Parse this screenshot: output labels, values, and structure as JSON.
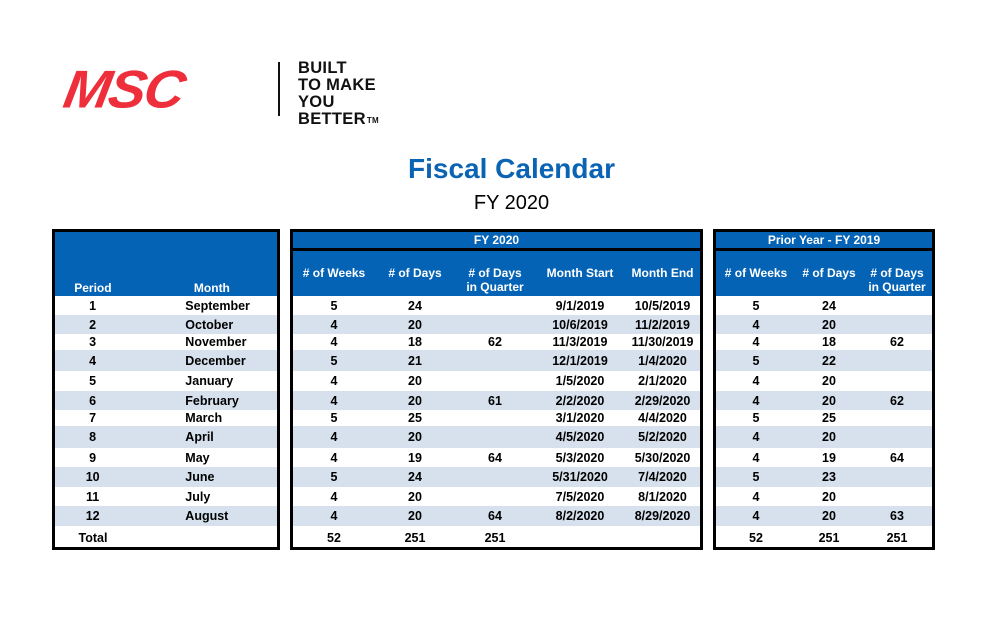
{
  "logo": {
    "brand": "MSC",
    "tagline_lines": [
      "BUILT",
      "TO MAKE",
      "YOU BETTER"
    ],
    "trademark": "TM",
    "brand_color": "#ee2e3a"
  },
  "header": {
    "title": "Fiscal Calendar",
    "subtitle": "FY 2020",
    "title_color": "#0b63b3"
  },
  "colors": {
    "header_fill": "#0563b6",
    "row_shade": "#d6e1ed",
    "border": "#000000"
  },
  "left_table": {
    "columns": [
      "Period",
      "Month"
    ],
    "rows": [
      {
        "period": "1",
        "month": "September"
      },
      {
        "period": "2",
        "month": "October"
      },
      {
        "period": "3",
        "month": "November"
      },
      {
        "period": "4",
        "month": "December"
      },
      {
        "period": "5",
        "month": "January"
      },
      {
        "period": "6",
        "month": "February"
      },
      {
        "period": "7",
        "month": "March"
      },
      {
        "period": "8",
        "month": "April"
      },
      {
        "period": "9",
        "month": "May"
      },
      {
        "period": "10",
        "month": "June"
      },
      {
        "period": "11",
        "month": "July"
      },
      {
        "period": "12",
        "month": "August"
      }
    ],
    "total_label": "Total"
  },
  "fy2020_table": {
    "group_label": "FY 2020",
    "columns": {
      "weeks": "# of Weeks",
      "days": "# of Days",
      "days_in_quarter_line1": "# of Days",
      "days_in_quarter_line2": "in Quarter",
      "month_start": "Month Start",
      "month_end": "Month End"
    },
    "rows": [
      {
        "weeks": "5",
        "days": "24",
        "quarter": "",
        "start": "9/1/2019",
        "end": "10/5/2019"
      },
      {
        "weeks": "4",
        "days": "20",
        "quarter": "",
        "start": "10/6/2019",
        "end": "11/2/2019"
      },
      {
        "weeks": "4",
        "days": "18",
        "quarter": "62",
        "start": "11/3/2019",
        "end": "11/30/2019"
      },
      {
        "weeks": "5",
        "days": "21",
        "quarter": "",
        "start": "12/1/2019",
        "end": "1/4/2020"
      },
      {
        "weeks": "4",
        "days": "20",
        "quarter": "",
        "start": "1/5/2020",
        "end": "2/1/2020"
      },
      {
        "weeks": "4",
        "days": "20",
        "quarter": "61",
        "start": "2/2/2020",
        "end": "2/29/2020"
      },
      {
        "weeks": "5",
        "days": "25",
        "quarter": "",
        "start": "3/1/2020",
        "end": "4/4/2020"
      },
      {
        "weeks": "4",
        "days": "20",
        "quarter": "",
        "start": "4/5/2020",
        "end": "5/2/2020"
      },
      {
        "weeks": "4",
        "days": "19",
        "quarter": "64",
        "start": "5/3/2020",
        "end": "5/30/2020"
      },
      {
        "weeks": "5",
        "days": "24",
        "quarter": "",
        "start": "5/31/2020",
        "end": "7/4/2020"
      },
      {
        "weeks": "4",
        "days": "20",
        "quarter": "",
        "start": "7/5/2020",
        "end": "8/1/2020"
      },
      {
        "weeks": "4",
        "days": "20",
        "quarter": "64",
        "start": "8/2/2020",
        "end": "8/29/2020"
      }
    ],
    "total": {
      "weeks": "52",
      "days": "251",
      "quarter": "251",
      "start": "",
      "end": ""
    }
  },
  "fy2019_table": {
    "group_label": "Prior Year - FY 2019",
    "columns": {
      "weeks": "# of Weeks",
      "days": "# of Days",
      "days_in_quarter_line1": "# of Days",
      "days_in_quarter_line2": "in Quarter"
    },
    "rows": [
      {
        "weeks": "5",
        "days": "24",
        "quarter": ""
      },
      {
        "weeks": "4",
        "days": "20",
        "quarter": ""
      },
      {
        "weeks": "4",
        "days": "18",
        "quarter": "62"
      },
      {
        "weeks": "5",
        "days": "22",
        "quarter": ""
      },
      {
        "weeks": "4",
        "days": "20",
        "quarter": ""
      },
      {
        "weeks": "4",
        "days": "20",
        "quarter": "62"
      },
      {
        "weeks": "5",
        "days": "25",
        "quarter": ""
      },
      {
        "weeks": "4",
        "days": "20",
        "quarter": ""
      },
      {
        "weeks": "4",
        "days": "19",
        "quarter": "64"
      },
      {
        "weeks": "5",
        "days": "23",
        "quarter": ""
      },
      {
        "weeks": "4",
        "days": "20",
        "quarter": ""
      },
      {
        "weeks": "4",
        "days": "20",
        "quarter": "63"
      }
    ],
    "total": {
      "weeks": "52",
      "days": "251",
      "quarter": "251"
    }
  }
}
